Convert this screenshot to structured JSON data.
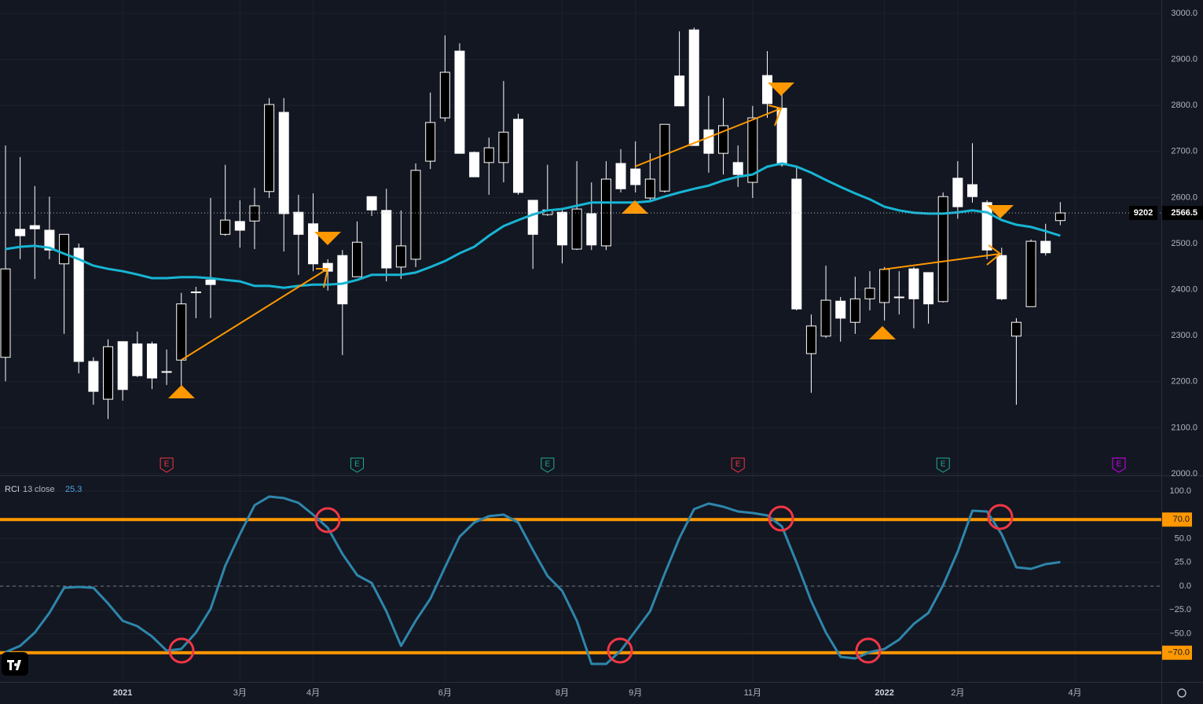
{
  "chart_data": [
    {
      "type": "candlestick",
      "symbol": "9202",
      "up_color": "#000000",
      "down_color": "#ffffff",
      "open": [
        2253,
        2531,
        2539,
        2529,
        2456,
        2490,
        2244,
        2162,
        2287,
        2282,
        2282,
        2222,
        2247,
        2395,
        2421,
        2520,
        2548,
        2549,
        2613,
        2785,
        2568,
        2543,
        2457,
        2474,
        2428,
        2602,
        2572,
        2449,
        2466,
        2679,
        2773,
        2918,
        2698,
        2676,
        2676,
        2770,
        2594,
        2563,
        2568,
        2488,
        2565,
        2495,
        2674,
        2662,
        2599,
        2614,
        2864,
        2964,
        2747,
        2696,
        2676,
        2633,
        2865,
        2794,
        2640,
        2261,
        2299,
        2375,
        2329,
        2380,
        2372,
        2384,
        2445,
        2437,
        2374,
        2642,
        2628,
        2589,
        2474,
        2299,
        2363,
        2505,
        2550
      ],
      "high": [
        2713,
        2688,
        2625,
        2602,
        2520,
        2500,
        2253,
        2292,
        2287,
        2309,
        2287,
        2270,
        2393,
        2406,
        2599,
        2671,
        2594,
        2621,
        2816,
        2816,
        2606,
        2609,
        2466,
        2486,
        2548,
        2602,
        2619,
        2572,
        2674,
        2828,
        2952,
        2935,
        2700,
        2730,
        2853,
        2782,
        2594,
        2671,
        2577,
        2679,
        2633,
        2679,
        2705,
        2722,
        2696,
        2759,
        2961,
        2969,
        2821,
        2816,
        2713,
        2799,
        2918,
        2824,
        2667,
        2346,
        2452,
        2384,
        2428,
        2440,
        2449,
        2440,
        2449,
        2437,
        2611,
        2679,
        2718,
        2594,
        2491,
        2338,
        2509,
        2543,
        2590
      ],
      "low": [
        2201,
        2466,
        2423,
        2466,
        2304,
        2218,
        2150,
        2119,
        2159,
        2210,
        2184,
        2193,
        2176,
        2338,
        2338,
        2517,
        2491,
        2488,
        2599,
        2483,
        2432,
        2440,
        2398,
        2258,
        2428,
        2560,
        2418,
        2423,
        2449,
        2662,
        2765,
        2696,
        2645,
        2606,
        2633,
        2606,
        2445,
        2560,
        2457,
        2486,
        2486,
        2486,
        2611,
        2611,
        2594,
        2611,
        2799,
        2713,
        2654,
        2650,
        2623,
        2599,
        2773,
        2667,
        2355,
        2176,
        2295,
        2287,
        2304,
        2355,
        2333,
        2346,
        2316,
        2326,
        2372,
        2554,
        2589,
        2466,
        2377,
        2150,
        2363,
        2474,
        2540
      ],
      "close": [
        2445,
        2517,
        2532,
        2486,
        2520,
        2244,
        2179,
        2276,
        2183,
        2213,
        2208,
        2222,
        2369,
        2395,
        2411,
        2551,
        2529,
        2582,
        2802,
        2565,
        2520,
        2456,
        2440,
        2369,
        2503,
        2573,
        2447,
        2495,
        2659,
        2763,
        2872,
        2696,
        2645,
        2708,
        2742,
        2611,
        2520,
        2573,
        2497,
        2575,
        2497,
        2640,
        2619,
        2628,
        2640,
        2759,
        2799,
        2713,
        2696,
        2756,
        2650,
        2773,
        2804,
        2671,
        2358,
        2321,
        2377,
        2338,
        2380,
        2403,
        2444,
        2384,
        2380,
        2369,
        2602,
        2580,
        2602,
        2486,
        2380,
        2329,
        2505,
        2480,
        2566.5
      ],
      "ma": {
        "color": "#17b5d3",
        "values": [
          2488,
          2493,
          2495,
          2491,
          2478,
          2466,
          2452,
          2445,
          2440,
          2433,
          2425,
          2425,
          2427,
          2427,
          2425,
          2421,
          2418,
          2408,
          2408,
          2404,
          2408,
          2411,
          2411,
          2413,
          2421,
          2432,
          2432,
          2432,
          2437,
          2449,
          2462,
          2479,
          2493,
          2517,
          2538,
          2551,
          2563,
          2572,
          2575,
          2582,
          2589,
          2589,
          2589,
          2589,
          2592,
          2602,
          2611,
          2619,
          2626,
          2637,
          2645,
          2650,
          2667,
          2674,
          2667,
          2654,
          2638,
          2623,
          2609,
          2596,
          2580,
          2572,
          2567,
          2565,
          2565,
          2568,
          2572,
          2568,
          2551,
          2541,
          2536,
          2527,
          2517
        ]
      },
      "ylim": [
        1996.6,
        3029
      ],
      "yticks": [
        {
          "value": 2000,
          "label": "2000.0"
        },
        {
          "value": 2100,
          "label": "2100.0"
        },
        {
          "value": 2200,
          "label": "2200.0"
        },
        {
          "value": 2300,
          "label": "2300.0"
        },
        {
          "value": 2400,
          "label": "2400.0"
        },
        {
          "value": 2500,
          "label": "2500.0"
        },
        {
          "value": 2600,
          "label": "2600.0"
        },
        {
          "value": 2700,
          "label": "2700.0"
        },
        {
          "value": 2800,
          "label": "2800.0"
        },
        {
          "value": 2900,
          "label": "2900.0"
        },
        {
          "value": 3000,
          "label": "3000.0"
        }
      ],
      "grid": true,
      "events": [
        {
          "index": 11,
          "label": "E",
          "color": "#f23645"
        },
        {
          "index": 24,
          "label": "E",
          "color": "#22ab94"
        },
        {
          "index": 37,
          "label": "E",
          "color": "#22ab94"
        },
        {
          "index": 50,
          "label": "E",
          "color": "#f23645"
        },
        {
          "index": 64,
          "label": "E",
          "color": "#22ab94"
        },
        {
          "index": 76,
          "label": "E",
          "color": "#d500f9"
        }
      ]
    },
    {
      "type": "line",
      "series": [
        {
          "name": "RCI",
          "color": "#2e86ab",
          "values": [
            -69.4,
            -62.8,
            -48.8,
            -28.1,
            -1.7,
            -0.8,
            -1.7,
            -18.2,
            -36.4,
            -42.1,
            -52.9,
            -67.8,
            -66.1,
            -48.8,
            -24.0,
            21.5,
            54.5,
            85.1,
            94.2,
            92.6,
            87.6,
            75.2,
            61.2,
            33.9,
            11.6,
            3.3,
            -26.4,
            -62.8,
            -36.4,
            -13.2,
            19.8,
            52.1,
            66.9,
            73.6,
            75.2,
            66.9,
            38.0,
            10.7,
            -5.0,
            -36.4,
            -81.8,
            -81.8,
            -67.8,
            -47.1,
            -26.4,
            13.2,
            50.4,
            81.0,
            86.8,
            83.5,
            78.5,
            76.9,
            74.4,
            62.8,
            24.8,
            -15.7,
            -48.8,
            -74.4,
            -76.0,
            -69.4,
            -66.1,
            -56.2,
            -39.7,
            -28.1,
            0.8,
            36.4,
            79.3,
            78.5,
            54.5,
            19.8,
            18.2,
            23.1,
            25.3
          ]
        }
      ],
      "period": 13,
      "source": "close",
      "ylim": [
        -100.8,
        116.5
      ],
      "yticks": [
        {
          "value": 100,
          "label": "100.0"
        },
        {
          "value": 50,
          "label": "50.0"
        },
        {
          "value": 25,
          "label": "25.0"
        },
        {
          "value": 0,
          "label": "0.0"
        },
        {
          "value": -25,
          "label": "−25.0"
        },
        {
          "value": -50,
          "label": "−50.0"
        }
      ],
      "levels": [
        {
          "value": 70,
          "label": "70.0"
        },
        {
          "value": -70,
          "label": "−70.0"
        }
      ],
      "level_color": "#ff9800",
      "baseline": 0,
      "grid": true,
      "xlim": [
        -0.376,
        78.9
      ],
      "xticks": [
        {
          "value": 8,
          "label": "2021"
        },
        {
          "value": 16,
          "label": "3月"
        },
        {
          "value": 21,
          "label": "4月"
        },
        {
          "value": 30,
          "label": "6月"
        },
        {
          "value": 38,
          "label": "8月"
        },
        {
          "value": 43,
          "label": "9月"
        },
        {
          "value": 51,
          "label": "11月"
        },
        {
          "value": 60,
          "label": "2022"
        },
        {
          "value": 65,
          "label": "2月"
        },
        {
          "value": 73,
          "label": "4月"
        }
      ]
    }
  ]
}
